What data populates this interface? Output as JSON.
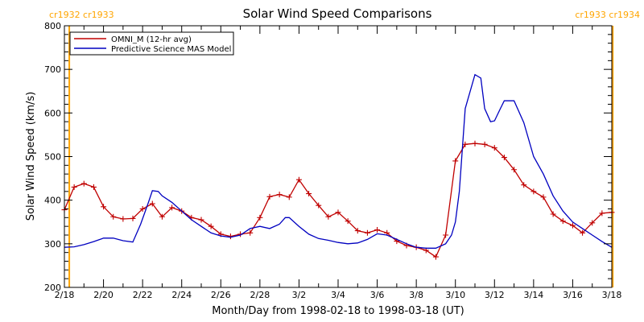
{
  "chart_data": {
    "type": "line",
    "title": "Solar Wind Speed Comparisons",
    "xlabel": "Month/Day from 1998-02-18 to 1998-03-18 (UT)",
    "ylabel": "Solar Wind Speed (km/s)",
    "x_unit": "days since 1998-02-18 00:00 UT",
    "xlim": [
      0,
      28
    ],
    "ylim": [
      200,
      800
    ],
    "x_ticks": [
      {
        "x": 0,
        "label": "2/18"
      },
      {
        "x": 2,
        "label": "2/20"
      },
      {
        "x": 4,
        "label": "2/22"
      },
      {
        "x": 6,
        "label": "2/24"
      },
      {
        "x": 8,
        "label": "2/26"
      },
      {
        "x": 10,
        "label": "2/28"
      },
      {
        "x": 12,
        "label": "3/2"
      },
      {
        "x": 14,
        "label": "3/4"
      },
      {
        "x": 16,
        "label": "3/6"
      },
      {
        "x": 18,
        "label": "3/8"
      },
      {
        "x": 20,
        "label": "3/10"
      },
      {
        "x": 22,
        "label": "3/12"
      },
      {
        "x": 24,
        "label": "3/14"
      },
      {
        "x": 26,
        "label": "3/16"
      },
      {
        "x": 28,
        "label": "3/18"
      }
    ],
    "y_ticks": [
      200,
      300,
      400,
      500,
      600,
      700,
      800
    ],
    "legend_position": "top-left",
    "series": [
      {
        "name": "OMNI_M (12-hr avg)",
        "color": "#c00000",
        "marker": "plus",
        "x": [
          0.0,
          0.5,
          1.0,
          1.5,
          2.0,
          2.5,
          3.0,
          3.5,
          4.0,
          4.5,
          5.0,
          5.5,
          6.0,
          6.5,
          7.0,
          7.5,
          8.0,
          8.5,
          9.0,
          9.5,
          10.0,
          10.5,
          11.0,
          11.5,
          12.0,
          12.5,
          13.0,
          13.5,
          14.0,
          14.5,
          15.0,
          15.5,
          16.0,
          16.5,
          17.0,
          17.5,
          18.0,
          18.5,
          19.0,
          19.5,
          20.0,
          20.5,
          21.0,
          21.5,
          22.0,
          22.5,
          23.0,
          23.5,
          24.0,
          24.5,
          25.0,
          25.5,
          26.0,
          26.5,
          27.0,
          27.5,
          28.0
        ],
        "values": [
          378,
          430,
          438,
          430,
          385,
          362,
          357,
          358,
          380,
          392,
          362,
          383,
          375,
          360,
          355,
          340,
          322,
          317,
          322,
          325,
          360,
          408,
          413,
          407,
          447,
          415,
          388,
          362,
          372,
          352,
          330,
          325,
          332,
          325,
          306,
          296,
          292,
          285,
          270,
          320,
          490,
          528,
          530,
          528,
          520,
          498,
          470,
          435,
          420,
          407,
          368,
          352,
          342,
          325,
          348,
          370,
          372
        ]
      },
      {
        "name": "Predictive Science MAS Model",
        "color": "#0000c0",
        "marker": "none",
        "x": [
          0.0,
          0.5,
          1.0,
          1.5,
          2.0,
          2.5,
          3.0,
          3.5,
          3.9,
          4.3,
          4.5,
          4.8,
          5.0,
          5.5,
          6.0,
          6.5,
          7.0,
          7.5,
          8.0,
          8.5,
          9.0,
          9.5,
          10.0,
          10.5,
          11.0,
          11.3,
          11.5,
          12.0,
          12.5,
          13.0,
          13.5,
          14.0,
          14.5,
          15.0,
          15.5,
          16.0,
          16.5,
          17.0,
          17.5,
          18.0,
          18.5,
          19.0,
          19.5,
          19.8,
          20.0,
          20.2,
          20.5,
          21.0,
          21.3,
          21.5,
          21.8,
          22.0,
          22.3,
          22.5,
          23.0,
          23.5,
          24.0,
          24.5,
          25.0,
          25.5,
          26.0,
          26.5,
          27.0,
          27.5,
          28.0
        ],
        "values": [
          292,
          293,
          298,
          305,
          313,
          313,
          307,
          304,
          345,
          395,
          422,
          420,
          410,
          395,
          375,
          355,
          340,
          325,
          318,
          315,
          320,
          335,
          340,
          335,
          345,
          360,
          360,
          340,
          322,
          312,
          308,
          303,
          300,
          302,
          310,
          323,
          320,
          310,
          300,
          292,
          290,
          290,
          300,
          320,
          350,
          420,
          610,
          688,
          680,
          610,
          580,
          582,
          610,
          628,
          628,
          578,
          500,
          460,
          410,
          375,
          350,
          335,
          320,
          305,
          292
        ]
      }
    ],
    "vlines": [
      {
        "x": 0.25,
        "color": "#ffa500",
        "label": "cr1932 cr1933",
        "label_side": "left"
      },
      {
        "x": 28.05,
        "color": "#ffa500",
        "label": "cr1933 cr1934",
        "label_side": "right"
      }
    ],
    "grid": false
  }
}
